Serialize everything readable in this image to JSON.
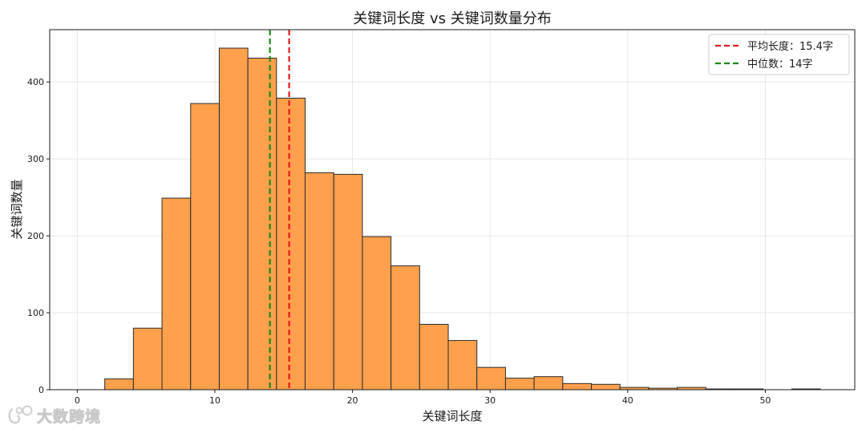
{
  "chart_data": {
    "type": "histogram",
    "title": "关键词长度 vs 关键词数量分布",
    "xlabel": "关键词长度",
    "ylabel": "关键词数量",
    "xlim": [
      -2,
      56.5
    ],
    "ylim": [
      0,
      468
    ],
    "xticks": [
      0,
      10,
      20,
      30,
      40,
      50
    ],
    "yticks": [
      0,
      100,
      200,
      300,
      400
    ],
    "grid": true,
    "legend_position": "top-right",
    "bar_color": "#ffa04d",
    "bar_edge_color": "#2b2b2b",
    "bins": [
      {
        "x0": 2.0,
        "x1": 4.08,
        "count": 14
      },
      {
        "x0": 4.08,
        "x1": 6.16,
        "count": 80
      },
      {
        "x0": 6.16,
        "x1": 8.24,
        "count": 249
      },
      {
        "x0": 8.24,
        "x1": 10.32,
        "count": 372
      },
      {
        "x0": 10.32,
        "x1": 12.4,
        "count": 444
      },
      {
        "x0": 12.4,
        "x1": 14.48,
        "count": 431
      },
      {
        "x0": 14.48,
        "x1": 16.56,
        "count": 379
      },
      {
        "x0": 16.56,
        "x1": 18.64,
        "count": 282
      },
      {
        "x0": 18.64,
        "x1": 20.72,
        "count": 280
      },
      {
        "x0": 20.72,
        "x1": 22.8,
        "count": 199
      },
      {
        "x0": 22.8,
        "x1": 24.88,
        "count": 161
      },
      {
        "x0": 24.88,
        "x1": 26.96,
        "count": 85
      },
      {
        "x0": 26.96,
        "x1": 29.04,
        "count": 64
      },
      {
        "x0": 29.04,
        "x1": 31.12,
        "count": 29
      },
      {
        "x0": 31.12,
        "x1": 33.2,
        "count": 15
      },
      {
        "x0": 33.2,
        "x1": 35.28,
        "count": 17
      },
      {
        "x0": 35.28,
        "x1": 37.36,
        "count": 8
      },
      {
        "x0": 37.36,
        "x1": 39.44,
        "count": 7
      },
      {
        "x0": 39.44,
        "x1": 41.52,
        "count": 3
      },
      {
        "x0": 41.52,
        "x1": 43.6,
        "count": 2
      },
      {
        "x0": 43.6,
        "x1": 45.68,
        "count": 3
      },
      {
        "x0": 45.68,
        "x1": 47.76,
        "count": 1
      },
      {
        "x0": 47.76,
        "x1": 49.84,
        "count": 1
      },
      {
        "x0": 49.84,
        "x1": 51.92,
        "count": 0
      },
      {
        "x0": 51.92,
        "x1": 54.0,
        "count": 1
      }
    ],
    "reference_lines": [
      {
        "label": "平均长度：15.4字",
        "x": 15.4,
        "color": "#e8191c"
      },
      {
        "label": "中位数：14字",
        "x": 14,
        "color": "#1a8a17"
      }
    ]
  },
  "watermark": {
    "text": "大数跨境",
    "icon": "watermark-logo-icon"
  }
}
